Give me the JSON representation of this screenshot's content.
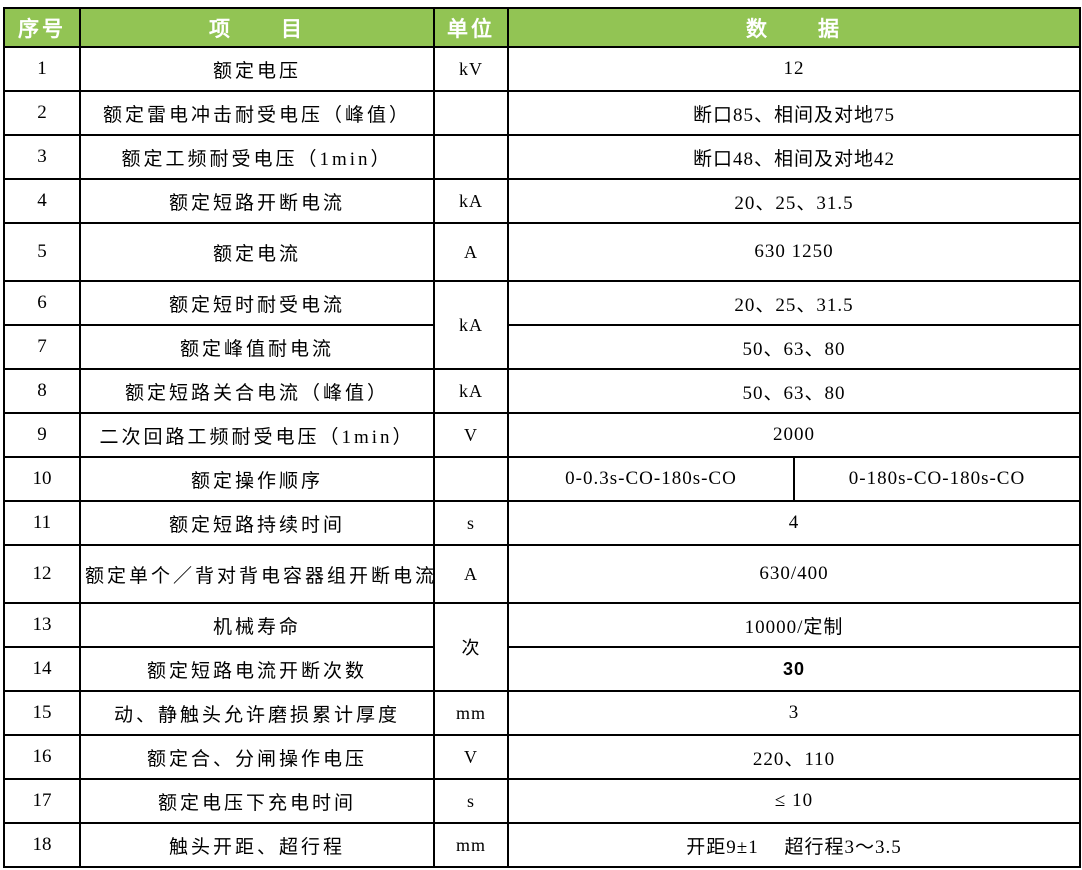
{
  "colors": {
    "header_bg": "#92C454",
    "header_text": "#FFFFFF",
    "border": "#000000",
    "body_text": "#000000"
  },
  "headers": {
    "no": "序号",
    "item": "项　　目",
    "unit": "单位",
    "data": "数　　据"
  },
  "rows": [
    {
      "no": "1",
      "item": "额定电压",
      "unit": "kV",
      "data": "12"
    },
    {
      "no": "2",
      "item": "额定雷电冲击耐受电压（峰值）",
      "unit": "",
      "data": "断口85、相间及对地75"
    },
    {
      "no": "3",
      "item": "额定工频耐受电压（1min）",
      "unit": "",
      "data": "断口48、相间及对地42"
    },
    {
      "no": "4",
      "item": "额定短路开断电流",
      "unit": "kA",
      "data": "20、25、31.5"
    },
    {
      "no": "5",
      "item": "额定电流",
      "unit": "A",
      "data": "630  1250"
    },
    {
      "no": "6",
      "item": "额定短时耐受电流",
      "unit": "kA",
      "data": "20、25、31.5"
    },
    {
      "no": "7",
      "item": "额定峰值耐电流",
      "unit": "",
      "data": "50、63、80"
    },
    {
      "no": "8",
      "item": "额定短路关合电流（峰值）",
      "unit": "kA",
      "data": "50、63、80"
    },
    {
      "no": "9",
      "item": "二次回路工频耐受电压（1min）",
      "unit": "V",
      "data": "2000"
    },
    {
      "no": "10",
      "item": "额定操作顺序",
      "unit": "",
      "data": "0-0.3s-CO-180s-CO",
      "data2": "0-180s-CO-180s-CO"
    },
    {
      "no": "11",
      "item": "额定短路持续时间",
      "unit": "s",
      "data": "4"
    },
    {
      "no": "12",
      "item": "额定单个／背对背电容器组开断电流",
      "unit": "A",
      "data": "630/400"
    },
    {
      "no": "13",
      "item": "机械寿命",
      "unit": "次",
      "data": "10000/定制"
    },
    {
      "no": "14",
      "item": "额定短路电流开断次数",
      "unit": "",
      "data": "30"
    },
    {
      "no": "15",
      "item": "动、静触头允许磨损累计厚度",
      "unit": "mm",
      "data": "3"
    },
    {
      "no": "16",
      "item": "额定合、分闸操作电压",
      "unit": "V",
      "data": "220、110"
    },
    {
      "no": "17",
      "item": "额定电压下充电时间",
      "unit": "s",
      "data": "≤ 10"
    },
    {
      "no": "18",
      "item": "触头开距、超行程",
      "unit": "mm",
      "data": "开距9±1　 超行程3～3.5"
    }
  ]
}
